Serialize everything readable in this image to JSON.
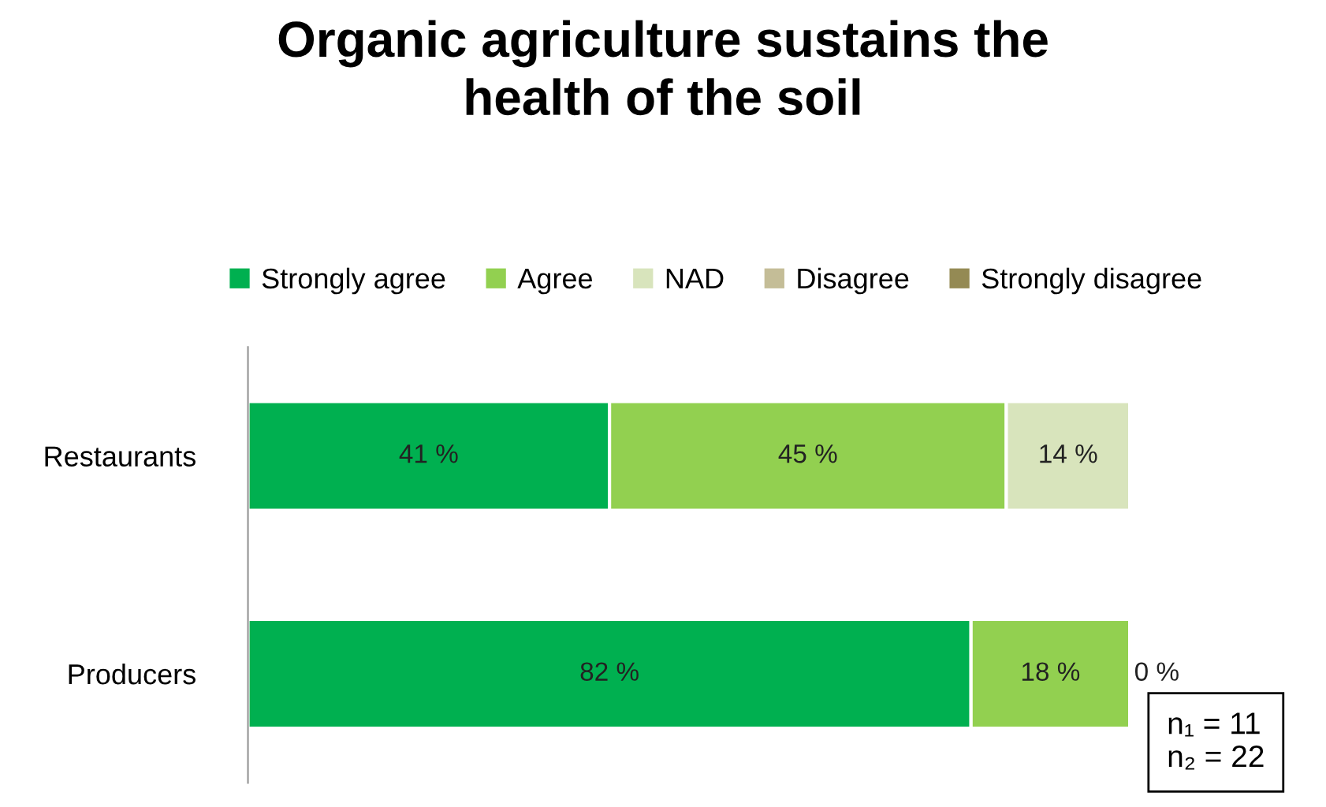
{
  "chart_data": {
    "type": "bar",
    "orientation": "horizontal",
    "stacked": true,
    "title": "Organic agriculture sustains the\nhealth of the soil",
    "categories": [
      "Restaurants",
      "Producers"
    ],
    "series": [
      {
        "name": "Strongly agree",
        "color": "#00b050",
        "values": [
          41,
          82
        ],
        "value_labels": [
          "41 %",
          "82 %"
        ]
      },
      {
        "name": "Agree",
        "color": "#92d050",
        "values": [
          45,
          18
        ],
        "value_labels": [
          "45 %",
          "18 %"
        ]
      },
      {
        "name": "NAD",
        "color": "#d8e4bc",
        "values": [
          14,
          0
        ],
        "value_labels": [
          "14 %",
          "0 %"
        ]
      },
      {
        "name": "Disagree",
        "color": "#c4bd97",
        "values": [
          0,
          0
        ],
        "value_labels": [
          null,
          null
        ]
      },
      {
        "name": "Strongly disagree",
        "color": "#948a54",
        "values": [
          0,
          0
        ],
        "value_labels": [
          null,
          null
        ]
      }
    ],
    "xlim": [
      0,
      100
    ],
    "tick_labels": "y",
    "legend": "top",
    "grid": false,
    "annotations": [
      "n₁ = 11\nn₂ = 22"
    ]
  }
}
